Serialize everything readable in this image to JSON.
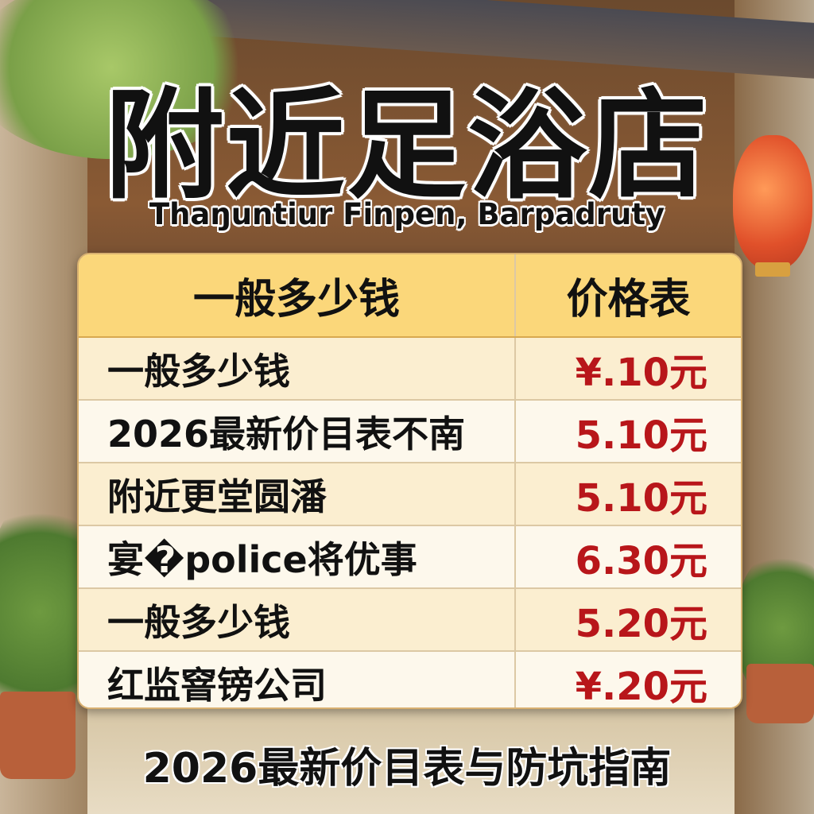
{
  "poster": {
    "title": "附近足浴店",
    "subtitle": "Thaŋuntiur Finpen, Barpadruty",
    "footer": "2026最新价目表与防坑指南"
  },
  "table": {
    "header": {
      "name": "一般多少钱",
      "price": "价格表"
    },
    "rows": [
      {
        "name": "一般多少钱",
        "price": "¥.10元"
      },
      {
        "name": "2026最新价目表不南",
        "price": "5.10元"
      },
      {
        "name": "附近更堂圆潘",
        "price": "5.10元"
      },
      {
        "name": "宴�police将优事",
        "price": "6.30元"
      },
      {
        "name": "一般多少钱",
        "price": "5.20元"
      },
      {
        "name": "红监窨镑公司",
        "price": "¥.20元"
      }
    ]
  },
  "colors": {
    "price": "#b8161a",
    "header_bg": "#fbd77a",
    "table_bg": "#fbf3e0"
  }
}
